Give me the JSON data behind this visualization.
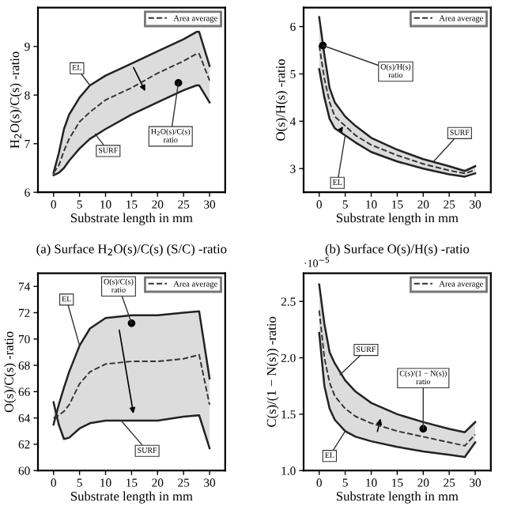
{
  "chart_data": [
    {
      "type": "line",
      "xlabel": "Substrate length in mm",
      "ylabel": "H$_{2}$O(s)/C(s) -ratio",
      "x": [
        0,
        1,
        2,
        3,
        5,
        7,
        10,
        15,
        20,
        25,
        27.5,
        28,
        30
      ],
      "series": [
        {
          "color": "#222222",
          "values": [
            6.4,
            6.8,
            7.3,
            7.6,
            7.95,
            8.2,
            8.4,
            8.65,
            8.9,
            9.15,
            9.3,
            9.3,
            8.6
          ]
        },
        {
          "color": "#222222",
          "values": [
            6.35,
            6.4,
            6.5,
            6.65,
            6.9,
            7.1,
            7.3,
            7.6,
            7.85,
            8.1,
            8.2,
            8.2,
            7.85
          ]
        },
        {
          "name": "Area average",
          "color": "#333333",
          "line_style": "dashed",
          "values": [
            6.4,
            6.55,
            6.85,
            7.1,
            7.45,
            7.65,
            7.9,
            8.15,
            8.45,
            8.7,
            8.85,
            8.85,
            8.3
          ],
          "lower": [
            6.35,
            6.4,
            6.5,
            6.65,
            6.9,
            7.1,
            7.3,
            7.6,
            7.85,
            8.1,
            8.2,
            8.2,
            7.85
          ],
          "upper": [
            6.4,
            6.8,
            7.3,
            7.6,
            7.95,
            8.2,
            8.4,
            8.65,
            8.9,
            9.15,
            9.3,
            9.3,
            8.6
          ]
        }
      ],
      "annotations": [
        {
          "text": "EL",
          "x": 7,
          "y": 8.2
        },
        {
          "text": "SURF",
          "x": 8,
          "y": 7.2
        },
        {
          "text": "H$_{2}$O(s)/C(s)\nratio",
          "x": 24,
          "y": 8.25
        },
        "(a) Surface H$_{2}$O(s)/C(s) (S/C) -ratio"
      ],
      "xlim": [
        -3,
        33
      ],
      "ylim": [
        6,
        9.8
      ],
      "xticks": [
        0,
        5,
        10,
        15,
        20,
        25,
        30
      ],
      "yticks": [
        6,
        7,
        8,
        9
      ],
      "grid": false,
      "legend": "top right"
    },
    {
      "type": "line",
      "xlabel": "Substrate length in mm",
      "ylabel": "O(s)/H(s) -ratio",
      "x": [
        0,
        1,
        2,
        3,
        5,
        7,
        10,
        15,
        20,
        25,
        28,
        30
      ],
      "series": [
        {
          "color": "#222222",
          "values": [
            6.2,
            5.4,
            4.7,
            4.4,
            4.1,
            3.9,
            3.65,
            3.4,
            3.2,
            3.05,
            2.95,
            3.05
          ]
        },
        {
          "color": "#222222",
          "values": [
            5.1,
            4.5,
            4.05,
            3.85,
            3.7,
            3.55,
            3.35,
            3.15,
            3.0,
            2.88,
            2.83,
            2.9
          ]
        },
        {
          "name": "Area average",
          "color": "#333333",
          "line_style": "dashed",
          "values": [
            5.6,
            4.9,
            4.4,
            4.1,
            3.9,
            3.7,
            3.5,
            3.28,
            3.1,
            2.96,
            2.9,
            2.97
          ],
          "lower": [
            5.1,
            4.5,
            4.05,
            3.85,
            3.7,
            3.55,
            3.35,
            3.15,
            3.0,
            2.88,
            2.83,
            2.9
          ],
          "upper": [
            6.2,
            5.4,
            4.7,
            4.4,
            4.1,
            3.9,
            3.65,
            3.4,
            3.2,
            3.05,
            2.95,
            3.05
          ]
        }
      ],
      "annotations": [
        {
          "text": "O(s)/H(s)\nratio",
          "x": 0.7,
          "y": 5.6
        },
        {
          "text": "SURF",
          "x": 22,
          "y": 3.15
        },
        {
          "text": "EL",
          "x": 5,
          "y": 3.7
        },
        "(b) Surface O(s)/H(s) -ratio"
      ],
      "xlim": [
        -3,
        33
      ],
      "ylim": [
        2.5,
        6.4
      ],
      "xticks": [
        0,
        5,
        10,
        15,
        20,
        25,
        30
      ],
      "yticks": [
        3,
        4,
        5,
        6
      ],
      "grid": false,
      "legend": "top right"
    },
    {
      "type": "line",
      "xlabel": "Substrate length in mm",
      "ylabel": "O(s)/C(s) -ratio",
      "x": [
        0,
        1,
        2,
        3,
        5,
        7,
        10,
        15,
        20,
        25,
        28,
        30
      ],
      "series": [
        {
          "color": "#222222",
          "values": [
            63.5,
            65,
            66.3,
            67.5,
            69.5,
            70.8,
            71.6,
            71.8,
            71.8,
            72,
            72.1,
            67
          ]
        },
        {
          "color": "#222222",
          "values": [
            65.2,
            63.5,
            62.4,
            62.5,
            63.2,
            63.6,
            63.8,
            63.8,
            63.8,
            64.1,
            64.2,
            61.7
          ]
        },
        {
          "name": "Area average",
          "color": "#333333",
          "line_style": "dashed",
          "values": [
            64,
            64.2,
            64.5,
            65,
            66.6,
            67.5,
            68.1,
            68.3,
            68.3,
            68.5,
            68.8,
            65
          ],
          "lower": [
            65.2,
            63.5,
            62.4,
            62.5,
            63.2,
            63.6,
            63.8,
            63.8,
            63.8,
            64.1,
            64.2,
            61.7
          ],
          "upper": [
            63.5,
            65,
            66.3,
            67.5,
            69.5,
            70.8,
            71.6,
            71.8,
            71.8,
            72,
            72.1,
            67
          ]
        }
      ],
      "annotations": [
        {
          "text": "EL",
          "x": 5,
          "y": 69.5
        },
        {
          "text": "O(s)/C(s)\nratio",
          "x": 15,
          "y": 71.2
        },
        {
          "text": "SURF",
          "x": 13,
          "y": 63.8
        }
      ],
      "xlim": [
        -3,
        33
      ],
      "ylim": [
        60,
        75
      ],
      "xticks": [
        0,
        5,
        10,
        15,
        20,
        25,
        30
      ],
      "yticks": [
        60,
        62,
        64,
        66,
        68,
        70,
        72,
        74
      ],
      "grid": false,
      "legend": "top right"
    },
    {
      "type": "line",
      "xlabel": "Substrate length in mm",
      "ylabel": "C(s)/(1 − N(s)) -ratio",
      "x": [
        0,
        1,
        2,
        3,
        5,
        7,
        10,
        15,
        20,
        25,
        28,
        30
      ],
      "series": [
        {
          "color": "#222222",
          "values": [
            2.65,
            2.3,
            2.05,
            1.95,
            1.8,
            1.7,
            1.6,
            1.5,
            1.43,
            1.37,
            1.34,
            1.43
          ]
        },
        {
          "color": "#222222",
          "values": [
            2.22,
            1.75,
            1.55,
            1.45,
            1.35,
            1.3,
            1.26,
            1.21,
            1.17,
            1.14,
            1.12,
            1.25
          ]
        },
        {
          "name": "Area average",
          "color": "#333333",
          "line_style": "dashed",
          "values": [
            2.42,
            2.0,
            1.78,
            1.66,
            1.55,
            1.48,
            1.42,
            1.35,
            1.3,
            1.25,
            1.22,
            1.32
          ],
          "lower": [
            2.22,
            1.75,
            1.55,
            1.45,
            1.35,
            1.3,
            1.26,
            1.21,
            1.17,
            1.14,
            1.12,
            1.25
          ],
          "upper": [
            2.65,
            2.3,
            2.05,
            1.95,
            1.8,
            1.7,
            1.6,
            1.5,
            1.43,
            1.37,
            1.34,
            1.43
          ]
        }
      ],
      "annotations": [
        {
          "text": "SURF",
          "x": 4,
          "y": 1.85
        },
        {
          "text": "EL",
          "x": 5,
          "y": 1.35
        },
        {
          "text": "C(s)/(1 − N(s))\nratio",
          "x": 20,
          "y": 1.37
        },
        "·10$^{−5}$"
      ],
      "xlim": [
        -3,
        33
      ],
      "ylim": [
        1.0,
        2.75
      ],
      "xticks": [
        0,
        5,
        10,
        15,
        20,
        25,
        30
      ],
      "yticks": [
        {
          "value": 1,
          "label": "1.0"
        },
        {
          "value": 1.5,
          "label": "1.5"
        },
        {
          "value": 2,
          "label": "2.0"
        },
        {
          "value": 2.5,
          "label": "2.5"
        }
      ],
      "grid": false,
      "legend": "top right"
    }
  ]
}
